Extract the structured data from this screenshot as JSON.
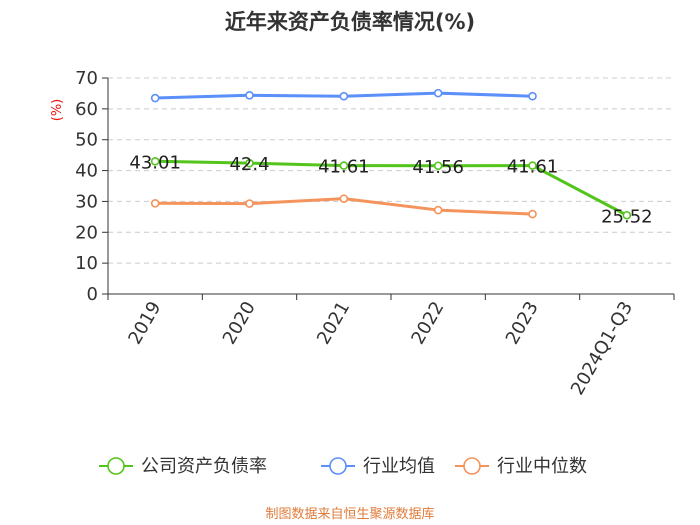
{
  "chart_data": {
    "type": "line",
    "title": "近年来资产负债率情况(%)",
    "ylabel": "(%)",
    "categories": [
      "2019",
      "2020",
      "2021",
      "2022",
      "2023",
      "2024Q1-Q3"
    ],
    "ylim": [
      0,
      70
    ],
    "yticks": [
      0,
      10,
      20,
      30,
      40,
      50,
      60,
      70
    ],
    "grid": true,
    "legend_position": "bottom",
    "series": [
      {
        "name": "公司资产负债率",
        "color": "#52c41a",
        "values": [
          43.01,
          42.4,
          41.61,
          41.56,
          41.61,
          25.52
        ],
        "data_labels": [
          "43.01",
          "42.4",
          "41.61",
          "41.56",
          "41.61",
          "25.52"
        ]
      },
      {
        "name": "行业均值",
        "color": "#5b8ff9",
        "values": [
          63.5,
          64.4,
          64.1,
          65.1,
          64.1,
          null
        ]
      },
      {
        "name": "行业中位数",
        "color": "#f4935b",
        "values": [
          29.4,
          29.3,
          30.9,
          27.2,
          25.9,
          null
        ]
      }
    ]
  },
  "footer": {
    "source": "制图数据来自恒生聚源数据库"
  }
}
